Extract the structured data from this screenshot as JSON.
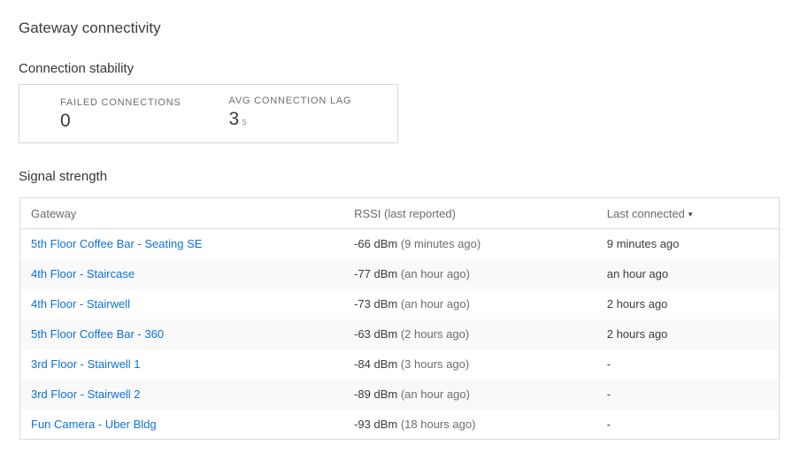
{
  "page": {
    "title": "Gateway connectivity"
  },
  "connection_stability": {
    "heading": "Connection stability",
    "stats": [
      {
        "label": "FAILED CONNECTIONS",
        "value": "0",
        "unit": ""
      },
      {
        "label": "AVG CONNECTION LAG",
        "value": "3",
        "unit": "s"
      }
    ]
  },
  "signal_strength": {
    "heading": "Signal strength",
    "table": {
      "columns": [
        {
          "label": "Gateway"
        },
        {
          "label": "RSSI (last reported)"
        },
        {
          "label": "Last connected",
          "sort_icon": "▾",
          "sort_direction": "descending"
        }
      ],
      "rows": [
        {
          "gateway": "5th Floor Coffee Bar - Seating SE",
          "rssi": "-66 dBm",
          "rssi_ago": "(9 minutes ago)",
          "last_connected": "9 minutes ago"
        },
        {
          "gateway": "4th Floor - Staircase",
          "rssi": "-77 dBm",
          "rssi_ago": "(an hour ago)",
          "last_connected": "an hour ago"
        },
        {
          "gateway": "4th Floor - Stairwell",
          "rssi": "-73 dBm",
          "rssi_ago": "(an hour ago)",
          "last_connected": "2 hours ago"
        },
        {
          "gateway": "5th Floor Coffee Bar - 360",
          "rssi": "-63 dBm",
          "rssi_ago": "(2 hours ago)",
          "last_connected": "2 hours ago"
        },
        {
          "gateway": "3rd Floor - Stairwell 1",
          "rssi": "-84 dBm",
          "rssi_ago": "(3 hours ago)",
          "last_connected": "-"
        },
        {
          "gateway": "3rd Floor - Stairwell 2",
          "rssi": "-89 dBm",
          "rssi_ago": "(an hour ago)",
          "last_connected": "-"
        },
        {
          "gateway": "Fun Camera - Uber Bldg",
          "rssi": "-93 dBm",
          "rssi_ago": "(18 hours ago)",
          "last_connected": "-"
        }
      ]
    }
  },
  "colors": {
    "link_blue": "#0d72d9",
    "dark_text": "#3c3c3c",
    "muted_text": "#6d6d6d",
    "border": "#dbdbdb",
    "row_stripe": "#f9f9f9"
  }
}
